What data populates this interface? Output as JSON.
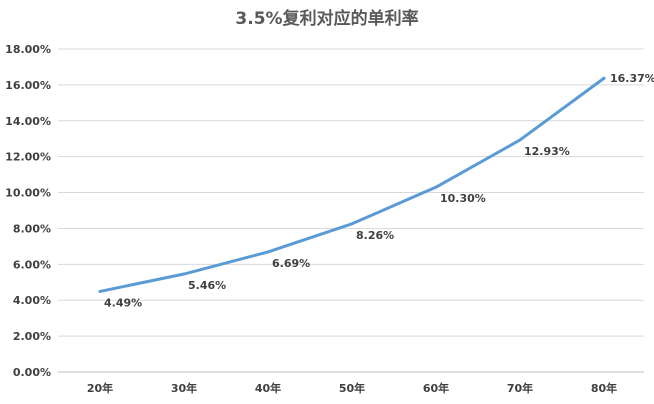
{
  "chart_data": {
    "type": "line",
    "title": "3.5%复利对应的单利率",
    "categories": [
      "20年",
      "30年",
      "40年",
      "50年",
      "60年",
      "70年",
      "80年"
    ],
    "series": [
      {
        "values": [
          4.49,
          5.46,
          6.69,
          8.26,
          10.3,
          12.93,
          16.37
        ],
        "labels": [
          "4.49%",
          "5.46%",
          "6.69%",
          "8.26%",
          "10.30%",
          "12.93%",
          "16.37%"
        ]
      }
    ],
    "ylim": [
      0,
      18
    ],
    "yticks": [
      {
        "value": 0,
        "label": "0.00%"
      },
      {
        "value": 2,
        "label": "2.00%"
      },
      {
        "value": 4,
        "label": "4.00%"
      },
      {
        "value": 6,
        "label": "6.00%"
      },
      {
        "value": 8,
        "label": "8.00%"
      },
      {
        "value": 10,
        "label": "10.00%"
      },
      {
        "value": 12,
        "label": "12.00%"
      },
      {
        "value": 14,
        "label": "14.00%"
      },
      {
        "value": 16,
        "label": "16.00%"
      },
      {
        "value": 18,
        "label": "18.00%"
      }
    ],
    "grid": true,
    "legend": "none",
    "colors": {
      "line": "#5b9bd5"
    }
  }
}
